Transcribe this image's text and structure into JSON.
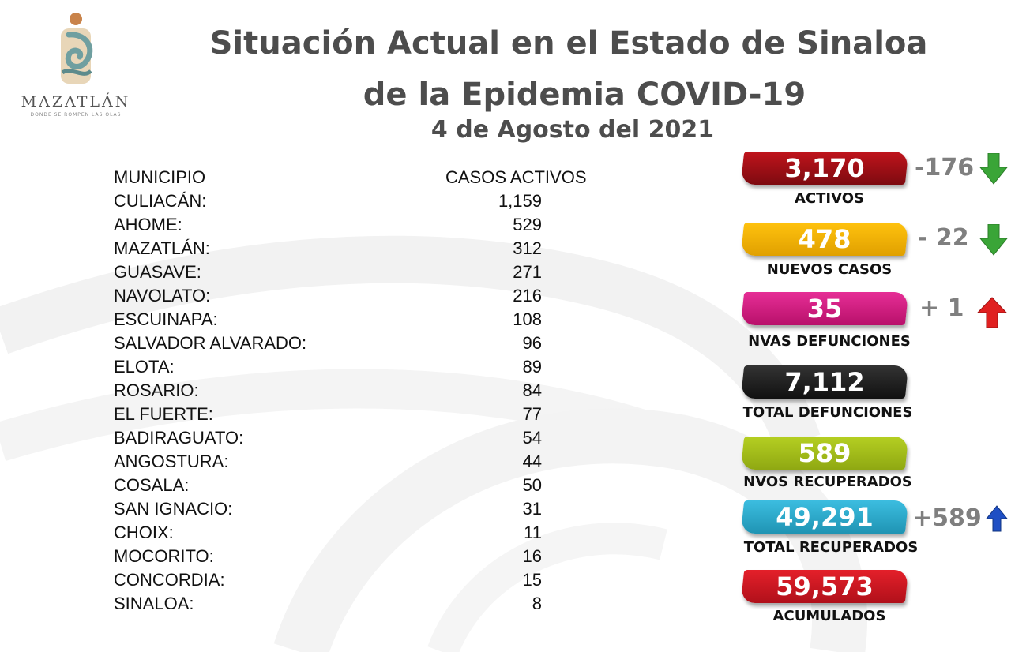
{
  "header": {
    "logo_word": "MAZATLÁN",
    "logo_tagline": "DONDE SE ROMPEN LAS OLAS",
    "title_line1": "Situación Actual en el Estado de Sinaloa",
    "title_line2": "de la Epidemia COVID-19",
    "date": "4 de Agosto del 2021"
  },
  "table": {
    "col_municipio": "MUNICIPIO",
    "col_casos": "CASOS ACTIVOS",
    "rows": [
      {
        "name": "CULIACÁN:",
        "value": "1,159"
      },
      {
        "name": "AHOME:",
        "value": "529"
      },
      {
        "name": "MAZATLÁN:",
        "value": "312"
      },
      {
        "name": "GUASAVE:",
        "value": "271"
      },
      {
        "name": "NAVOLATO:",
        "value": "216"
      },
      {
        "name": "ESCUINAPA:",
        "value": "108"
      },
      {
        "name": "SALVADOR ALVARADO:",
        "value": "96"
      },
      {
        "name": "ELOTA:",
        "value": "89"
      },
      {
        "name": "ROSARIO:",
        "value": "84"
      },
      {
        "name": "EL FUERTE:",
        "value": "77"
      },
      {
        "name": "BADIRAGUATO:",
        "value": "54"
      },
      {
        "name": "ANGOSTURA:",
        "value": "44"
      },
      {
        "name": "COSALA:",
        "value": "50"
      },
      {
        "name": "SAN IGNACIO:",
        "value": "31"
      },
      {
        "name": "CHOIX:",
        "value": "11"
      },
      {
        "name": "MOCORITO:",
        "value": "16"
      },
      {
        "name": "CONCORDIA:",
        "value": "15"
      },
      {
        "name": "SINALOA:",
        "value": "8"
      }
    ]
  },
  "stats": {
    "activos": {
      "value": "3,170",
      "label": "ACTIVOS",
      "delta": "-176",
      "trend": "down",
      "color": "#a50f15"
    },
    "nuevos_casos": {
      "value": "478",
      "label": "NUEVOS CASOS",
      "delta": "- 22",
      "trend": "down",
      "color": "#f2b705"
    },
    "nvas_defunciones": {
      "value": "35",
      "label": "NVAS DEFUNCIONES",
      "delta": "+ 1",
      "trend": "up",
      "color": "#d6197f"
    },
    "total_defunciones": {
      "value": "7,112",
      "label": "TOTAL DEFUNCIONES",
      "color": "#1e1e1e"
    },
    "nvos_recuperados": {
      "value": "589",
      "label": "NVOS RECUPERADOS",
      "color": "#a6c219"
    },
    "total_recuperados": {
      "value": "49,291",
      "label": "TOTAL RECUPERADOS",
      "delta": "+589",
      "trend": "up",
      "color": "#2aa9c9"
    },
    "acumulados": {
      "value": "59,573",
      "label": "ACUMULADOS",
      "color": "#d71920"
    }
  },
  "colors": {
    "trend_down": "#3aa537",
    "trend_up_red": "#e02020",
    "trend_up_blue": "#1f4fc4",
    "title_gray": "#4d4d4d"
  }
}
